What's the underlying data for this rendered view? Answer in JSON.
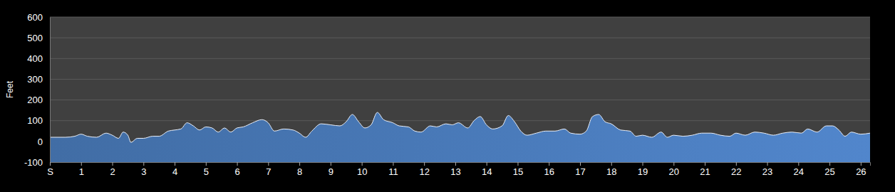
{
  "chart_data": {
    "type": "area",
    "y_label": "Feet",
    "color": "#4a7bbb",
    "grid": true,
    "x": [
      0,
      0.5,
      0.8,
      1.0,
      1.2,
      1.5,
      1.8,
      2.0,
      2.2,
      2.35,
      2.5,
      2.6,
      2.8,
      3.0,
      3.3,
      3.5,
      3.8,
      4.0,
      4.2,
      4.4,
      4.6,
      4.8,
      5.0,
      5.2,
      5.4,
      5.6,
      5.8,
      6.0,
      6.2,
      6.5,
      6.8,
      7.0,
      7.2,
      7.5,
      7.8,
      8.0,
      8.2,
      8.4,
      8.7,
      9.0,
      9.3,
      9.5,
      9.7,
      9.9,
      10.1,
      10.3,
      10.5,
      10.7,
      11.0,
      11.2,
      11.5,
      11.7,
      11.9,
      12.2,
      12.4,
      12.7,
      12.9,
      13.1,
      13.4,
      13.6,
      13.8,
      14.0,
      14.2,
      14.5,
      14.7,
      14.9,
      15.1,
      15.3,
      15.6,
      15.9,
      16.2,
      16.5,
      16.7,
      17.0,
      17.2,
      17.4,
      17.6,
      17.8,
      18.0,
      18.3,
      18.6,
      18.8,
      19.0,
      19.3,
      19.6,
      19.8,
      20.0,
      20.3,
      20.6,
      20.9,
      21.2,
      21.5,
      21.8,
      22.0,
      22.3,
      22.6,
      22.9,
      23.2,
      23.5,
      23.8,
      24.1,
      24.3,
      24.6,
      24.9,
      25.1,
      25.3,
      25.5,
      25.7,
      26.0,
      26.3
    ],
    "values": [
      20,
      20,
      25,
      35,
      25,
      20,
      40,
      30,
      15,
      45,
      30,
      -5,
      15,
      15,
      25,
      25,
      50,
      55,
      60,
      90,
      75,
      55,
      70,
      65,
      45,
      65,
      45,
      65,
      70,
      90,
      105,
      90,
      50,
      60,
      55,
      40,
      20,
      50,
      85,
      80,
      75,
      95,
      130,
      95,
      65,
      80,
      140,
      105,
      90,
      75,
      70,
      50,
      45,
      75,
      70,
      85,
      80,
      90,
      65,
      100,
      120,
      80,
      60,
      75,
      125,
      95,
      50,
      30,
      40,
      50,
      50,
      60,
      40,
      35,
      50,
      120,
      130,
      95,
      85,
      55,
      50,
      25,
      30,
      20,
      45,
      20,
      30,
      25,
      30,
      40,
      40,
      30,
      25,
      40,
      30,
      45,
      40,
      30,
      40,
      45,
      40,
      60,
      45,
      75,
      75,
      55,
      25,
      45,
      35,
      40
    ],
    "xlim": [
      0,
      26.3
    ],
    "xticks": [
      {
        "value": 0,
        "label": "S"
      },
      1,
      2,
      3,
      4,
      5,
      6,
      7,
      8,
      9,
      10,
      11,
      12,
      13,
      14,
      15,
      16,
      17,
      18,
      19,
      20,
      21,
      22,
      23,
      24,
      25,
      26
    ],
    "ylim": [
      -100,
      600
    ],
    "yticks": [
      -100,
      0,
      100,
      200,
      300,
      400,
      500,
      600
    ]
  }
}
